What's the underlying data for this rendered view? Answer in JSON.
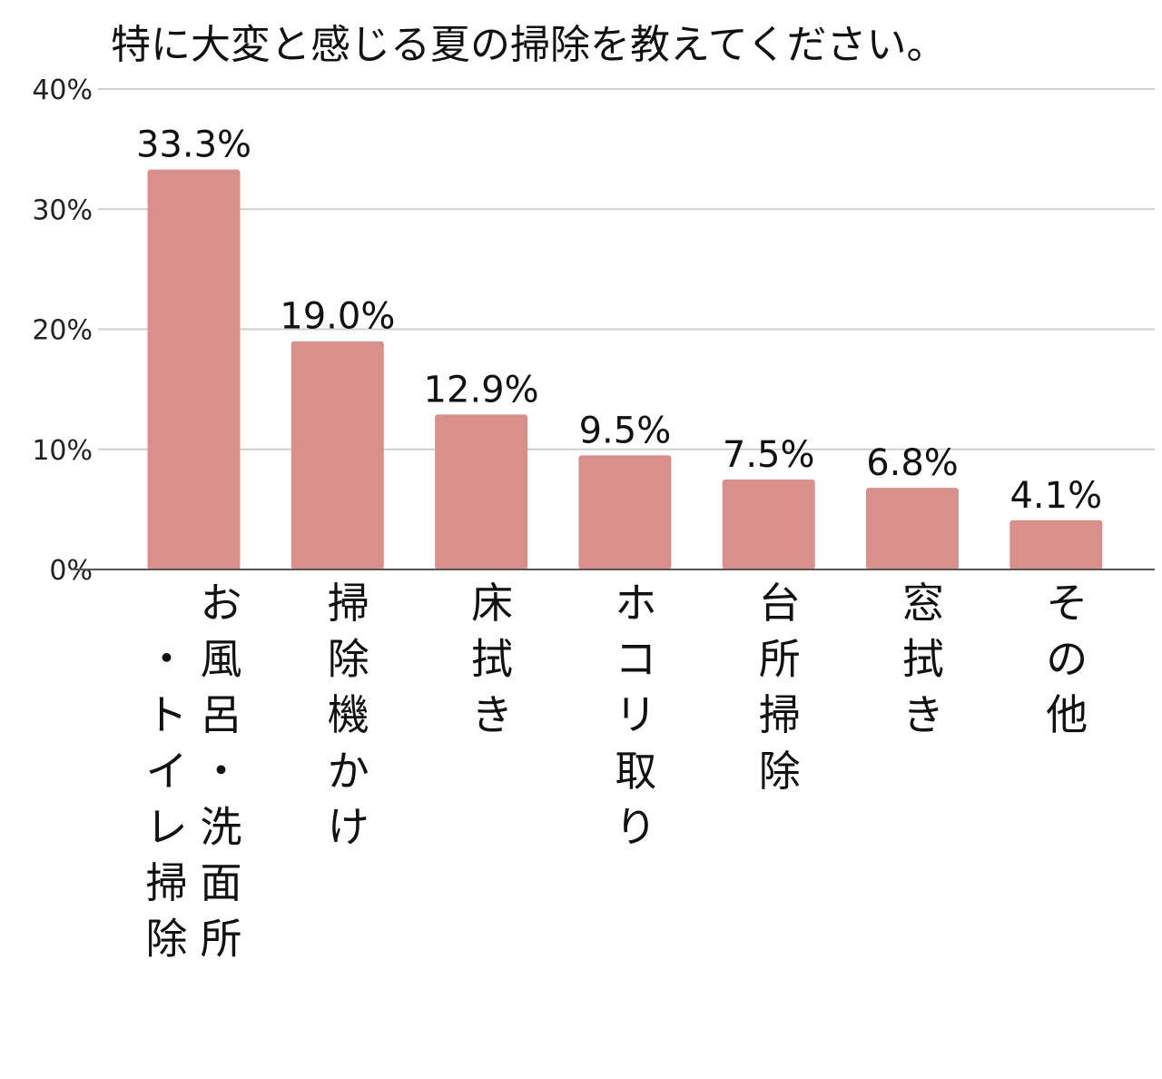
{
  "chart_data": {
    "type": "bar",
    "title": "特に大変と感じる夏の掃除を教えてください。",
    "xlabel": "",
    "ylabel": "",
    "ylim": [
      0,
      40
    ],
    "yticks": [
      "0%",
      "10%",
      "20%",
      "30%",
      "40%"
    ],
    "ytick_values": [
      0,
      10,
      20,
      30,
      40
    ],
    "grid": true,
    "legend": "none",
    "bar_color": "#d9908b",
    "categories": [
      "お風呂・洗面所・トイレ掃除",
      "掃除機かけ",
      "床拭き",
      "ホコリ取り",
      "台所掃除",
      "窓拭き",
      "その他"
    ],
    "category_lines": [
      [
        "お風呂・洗面所",
        "・トイレ掃除"
      ],
      [
        "掃除機かけ"
      ],
      [
        "床拭き"
      ],
      [
        "ホコリ取り"
      ],
      [
        "台所掃除"
      ],
      [
        "窓拭き"
      ],
      [
        "その他"
      ]
    ],
    "values": [
      33.3,
      19.0,
      12.9,
      9.5,
      7.5,
      6.8,
      4.1
    ],
    "value_labels": [
      "33.3%",
      "19.0%",
      "12.9%",
      "9.5%",
      "7.5%",
      "6.8%",
      "4.1%"
    ]
  }
}
